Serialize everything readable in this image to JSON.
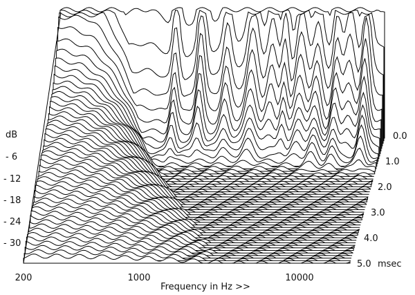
{
  "chart_data": {
    "type": "waterfall",
    "title": "",
    "xlabel": "Frequency in Hz >>",
    "ylabel": "dB",
    "x_scale": "log",
    "xlim": [
      200,
      20000
    ],
    "x_ticks": [
      {
        "value": 200,
        "label": "200"
      },
      {
        "value": 1000,
        "label": "1000"
      },
      {
        "value": 10000,
        "label": "10000"
      }
    ],
    "y_ticks": [
      {
        "value": -6,
        "label": "- 6"
      },
      {
        "value": -12,
        "label": "- 12"
      },
      {
        "value": -18,
        "label": "- 18"
      },
      {
        "value": -24,
        "label": "- 24"
      },
      {
        "value": -30,
        "label": "- 30"
      }
    ],
    "ylim": [
      -36,
      0
    ],
    "time_unit": "msec",
    "time_ticks": [
      {
        "value": 0.0,
        "label": "0.0"
      },
      {
        "value": 1.0,
        "label": "1.0"
      },
      {
        "value": 2.0,
        "label": "2.0"
      },
      {
        "value": 3.0,
        "label": "3.0"
      },
      {
        "value": 4.0,
        "label": "4.0"
      },
      {
        "value": 5.0,
        "label": "5.0"
      }
    ],
    "time_range": [
      0,
      5
    ],
    "slice_count": 50,
    "line_color": "#000000",
    "fill_color": "#ffffff",
    "grid": false
  }
}
